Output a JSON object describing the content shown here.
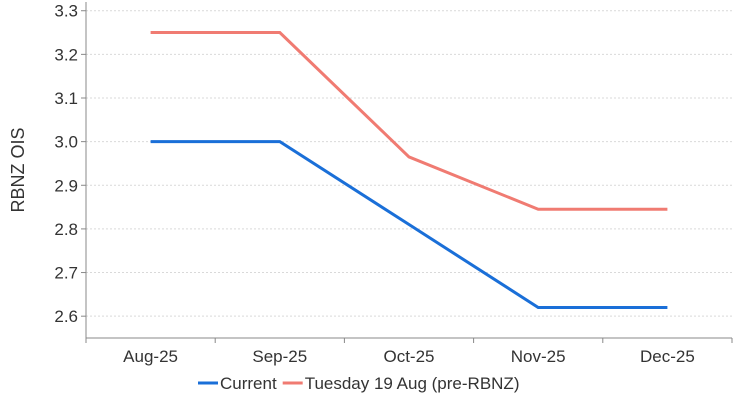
{
  "chart_data": {
    "type": "line",
    "title": "",
    "xlabel": "",
    "ylabel": "RBNZ OIS",
    "categories": [
      "Aug-25",
      "Sep-25",
      "Oct-25",
      "Nov-25",
      "Dec-25"
    ],
    "ylim": [
      2.55,
      3.32
    ],
    "yticks": [
      2.6,
      2.7,
      2.8,
      2.9,
      3.0,
      3.1,
      3.2,
      3.3
    ],
    "grid": true,
    "legend_position": "bottom",
    "series": [
      {
        "name": "Current",
        "color": "#1a6fd8",
        "values": [
          3.0,
          3.0,
          2.81,
          2.62,
          2.62
        ]
      },
      {
        "name": "Tuesday 19 Aug (pre-RBNZ)",
        "color": "#f07b72",
        "values": [
          3.25,
          3.25,
          2.965,
          2.845,
          2.845
        ]
      }
    ]
  }
}
